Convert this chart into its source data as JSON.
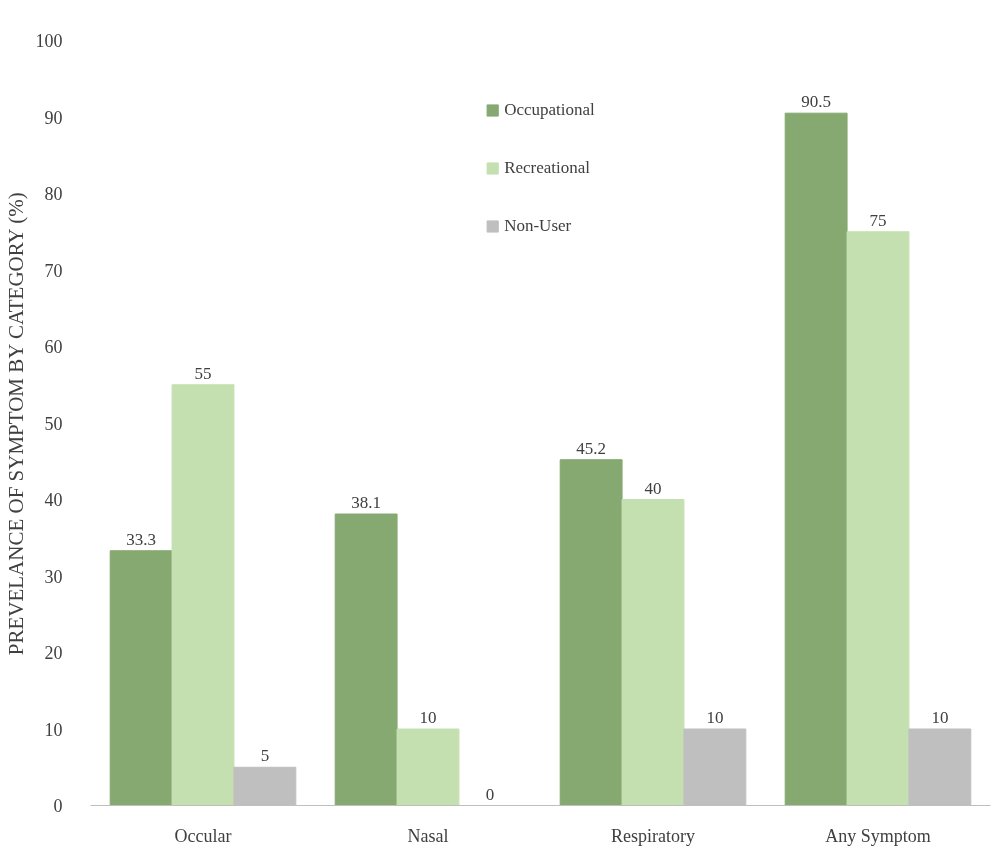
{
  "chart_data": {
    "type": "bar",
    "ylabel": "PREVELANCE OF SYMPTOM BY CATEGORY (%)",
    "categories": [
      "Occular",
      "Nasal",
      "Respiratory",
      "Any Symptom"
    ],
    "series": [
      {
        "name": "Occupational",
        "color": "#86a871",
        "values": [
          33.3,
          38.1,
          45.2,
          90.5
        ]
      },
      {
        "name": "Recreational",
        "color": "#c5e0b0",
        "values": [
          55,
          10,
          40,
          75
        ]
      },
      {
        "name": "Non-User",
        "color": "#bfbfbf",
        "values": [
          5,
          0,
          10,
          10
        ]
      }
    ],
    "ylim": [
      0,
      100
    ],
    "yticks": [
      0,
      10,
      20,
      30,
      40,
      50,
      60,
      70,
      80,
      90,
      100
    ],
    "data_labels": true,
    "legend": "top",
    "grid": false
  }
}
